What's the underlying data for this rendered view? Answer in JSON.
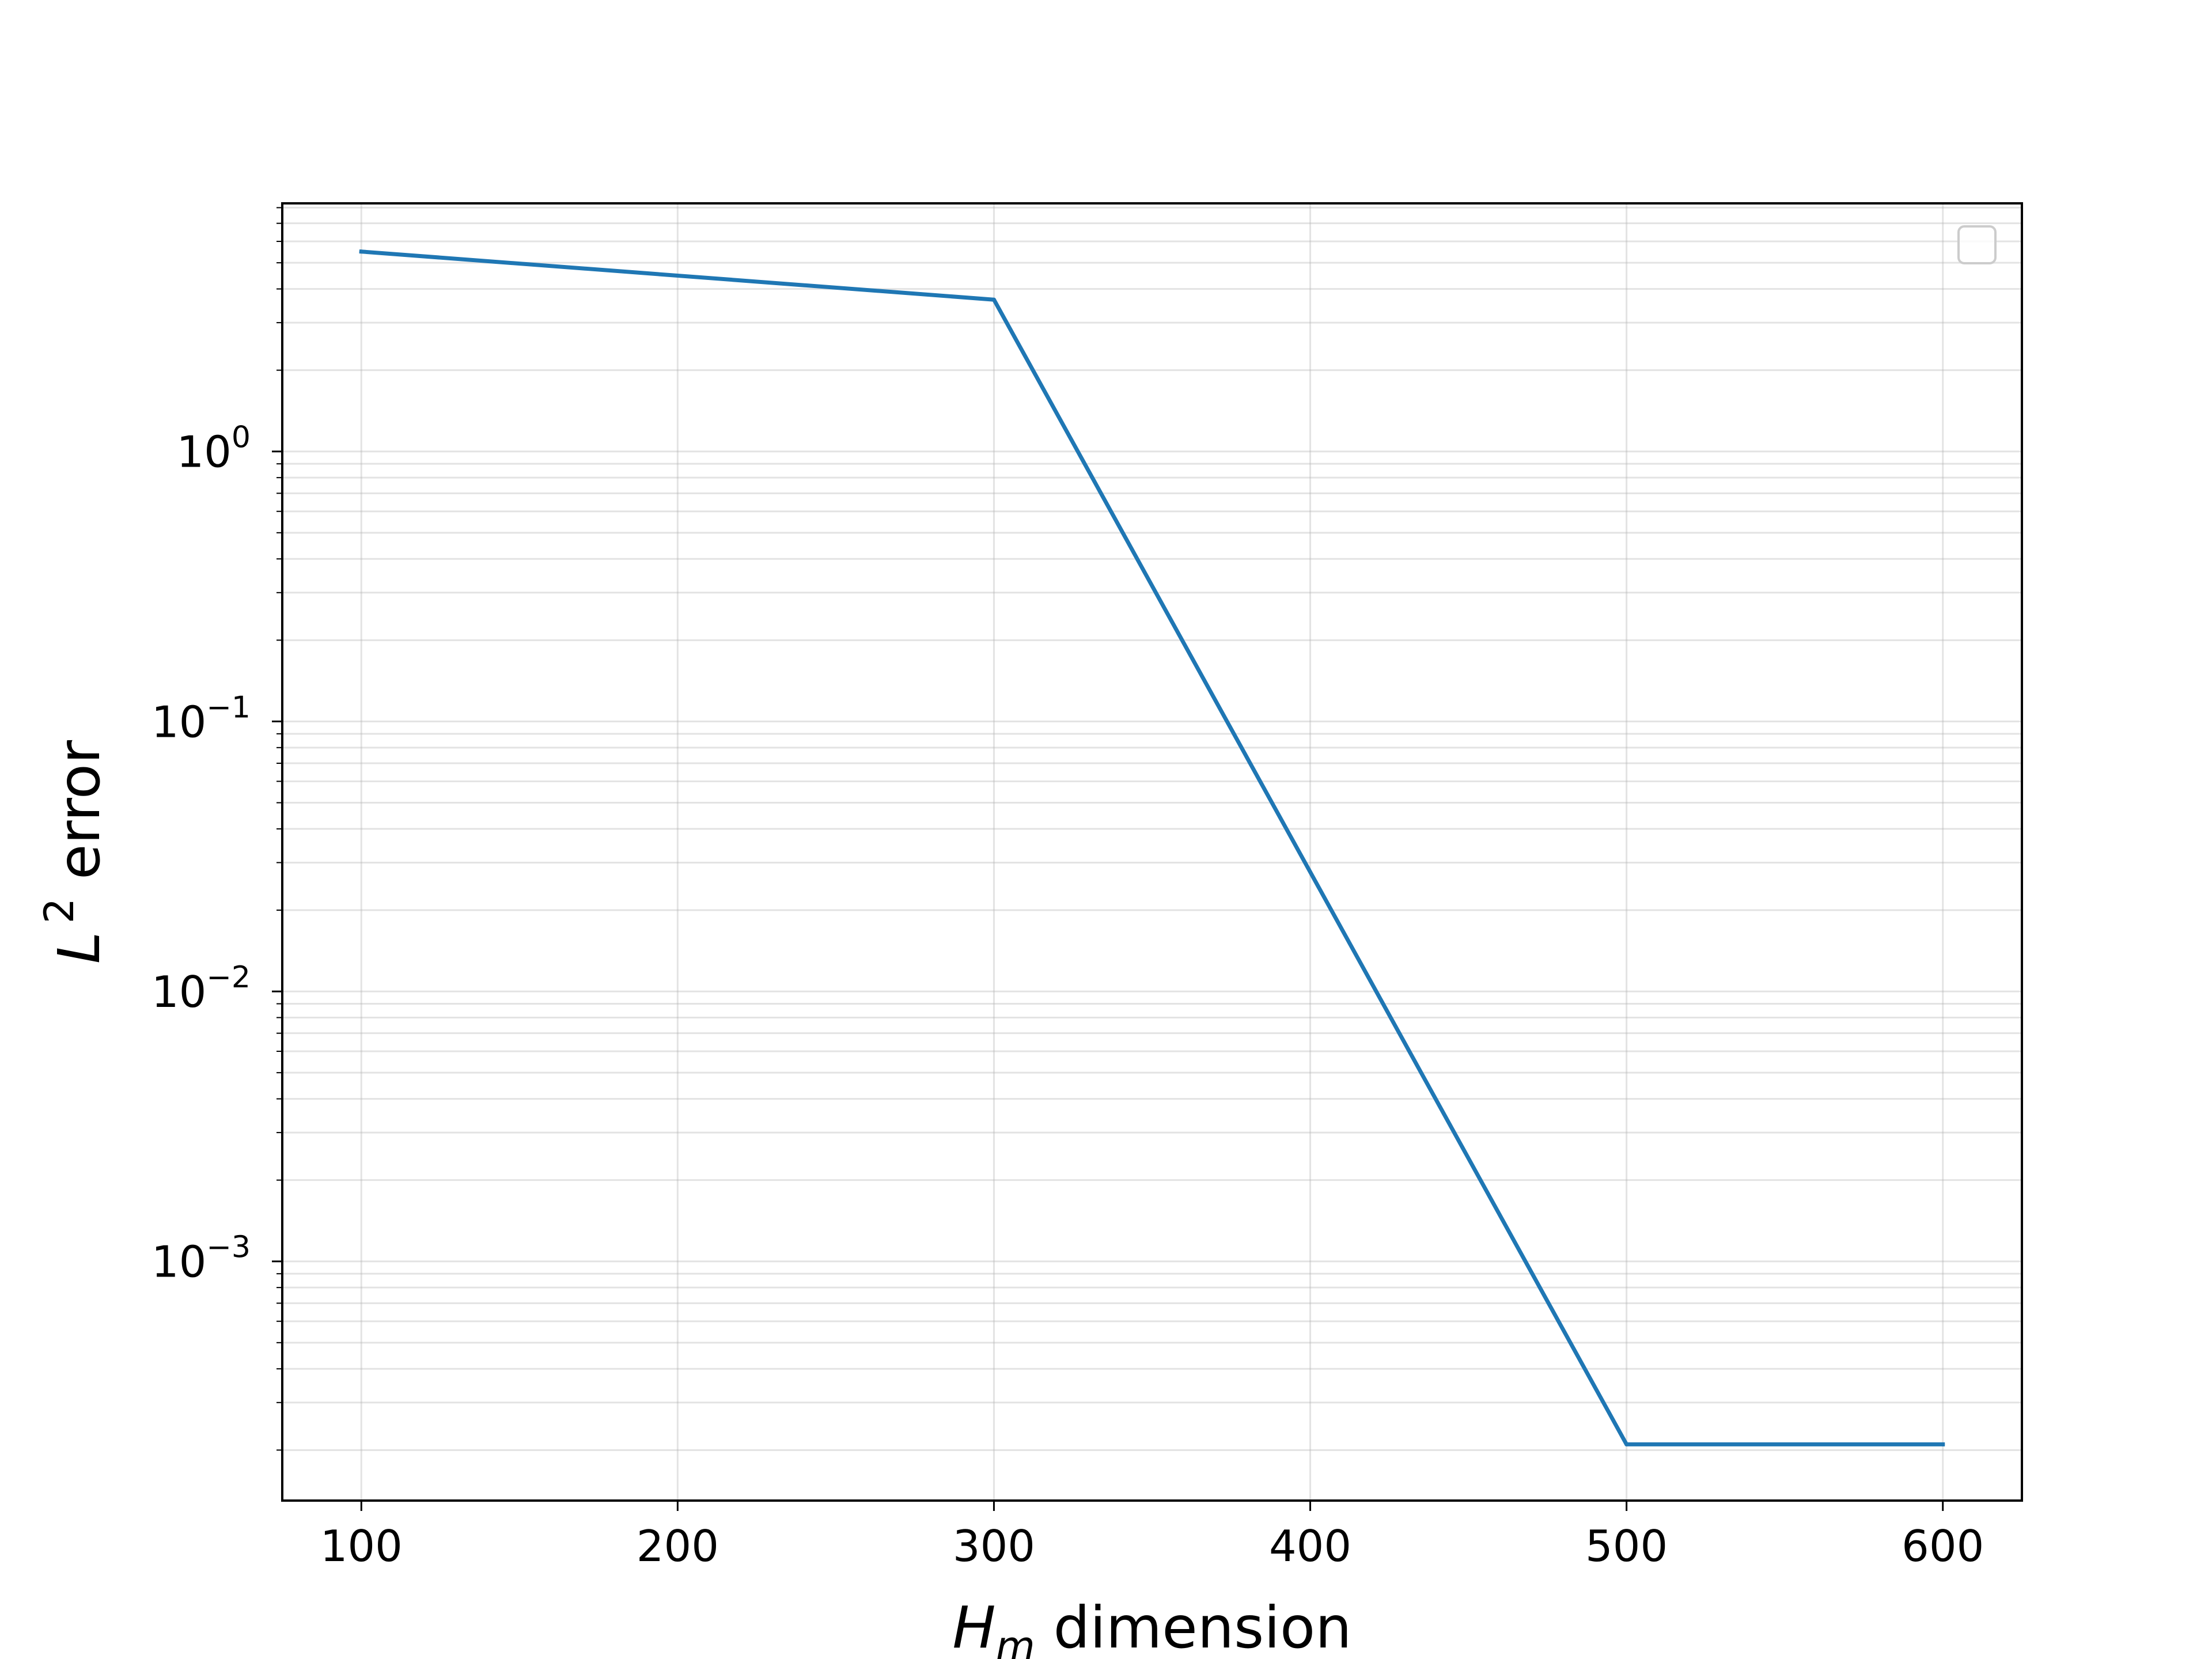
{
  "chart_data": {
    "type": "line",
    "title": "",
    "xlabel": {
      "main": "H",
      "subscript": "m",
      "rest": " dimension"
    },
    "ylabel": {
      "main": "L",
      "superscript": "2",
      "rest": " error"
    },
    "xlim": [
      75,
      625
    ],
    "ylim": [
      0.00013,
      8.3
    ],
    "x_scale": "linear",
    "y_scale": "log",
    "x_ticks": [
      100,
      200,
      300,
      400,
      500,
      600
    ],
    "x_tick_labels": [
      "100",
      "200",
      "300",
      "400",
      "500",
      "600"
    ],
    "y_ticks": [
      {
        "value": 1,
        "base": "10",
        "exp": "0"
      },
      {
        "value": 0.1,
        "base": "10",
        "exp": "−1"
      },
      {
        "value": 0.01,
        "base": "10",
        "exp": "−2"
      },
      {
        "value": 0.001,
        "base": "10",
        "exp": "−3"
      }
    ],
    "grid": true,
    "grid_minor": true,
    "legend": "empty, top-right",
    "series": [
      {
        "color": "#1f77b4",
        "x": [
          100,
          300,
          500,
          600
        ],
        "y": [
          5.5,
          3.65,
          0.00021,
          0.00021
        ]
      }
    ]
  }
}
